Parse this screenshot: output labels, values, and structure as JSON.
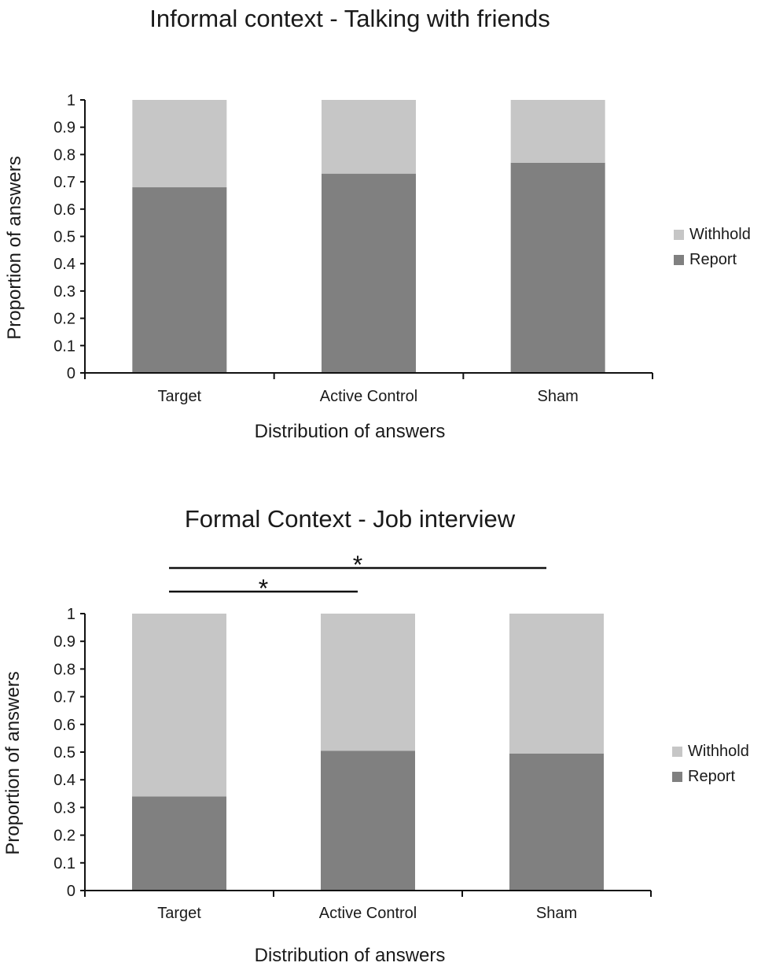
{
  "chart_data": [
    {
      "type": "bar",
      "stacked": true,
      "title": "Informal context - Talking with friends",
      "xlabel": "Distribution of answers",
      "ylabel": "Proportion of answers",
      "ylim": [
        0,
        1
      ],
      "yticks": [
        "0",
        "0.1",
        "0.2",
        "0.3",
        "0.4",
        "0.5",
        "0.6",
        "0.7",
        "0.8",
        "0.9",
        "1"
      ],
      "categories": [
        "Target",
        "Active Control",
        "Sham"
      ],
      "series": [
        {
          "name": "Report",
          "color": "#808080",
          "values": [
            0.68,
            0.73,
            0.77
          ]
        },
        {
          "name": "Withhold",
          "color": "#c6c6c6",
          "values": [
            0.32,
            0.27,
            0.23
          ]
        }
      ],
      "legend": {
        "position": "right",
        "items": [
          "Withhold",
          "Report"
        ]
      },
      "grid": false,
      "annotations": []
    },
    {
      "type": "bar",
      "stacked": true,
      "title": "Formal Context - Job interview",
      "xlabel": "Distribution of answers",
      "ylabel": "Proportion of answers",
      "ylim": [
        0,
        1
      ],
      "yticks": [
        "0",
        "0.1",
        "0.2",
        "0.3",
        "0.4",
        "0.5",
        "0.6",
        "0.7",
        "0.8",
        "0.9",
        "1"
      ],
      "categories": [
        "Target",
        "Active Control",
        "Sham"
      ],
      "series": [
        {
          "name": "Report",
          "color": "#808080",
          "values": [
            0.34,
            0.505,
            0.495
          ]
        },
        {
          "name": "Withhold",
          "color": "#c6c6c6",
          "values": [
            0.66,
            0.495,
            0.505
          ]
        }
      ],
      "legend": {
        "position": "right",
        "items": [
          "Withhold",
          "Report"
        ]
      },
      "grid": false,
      "annotations": [
        {
          "type": "significance",
          "from": "Target",
          "to": "Sham",
          "label": "*"
        },
        {
          "type": "significance",
          "from": "Target",
          "to": "Active Control",
          "label": "*"
        }
      ]
    }
  ]
}
